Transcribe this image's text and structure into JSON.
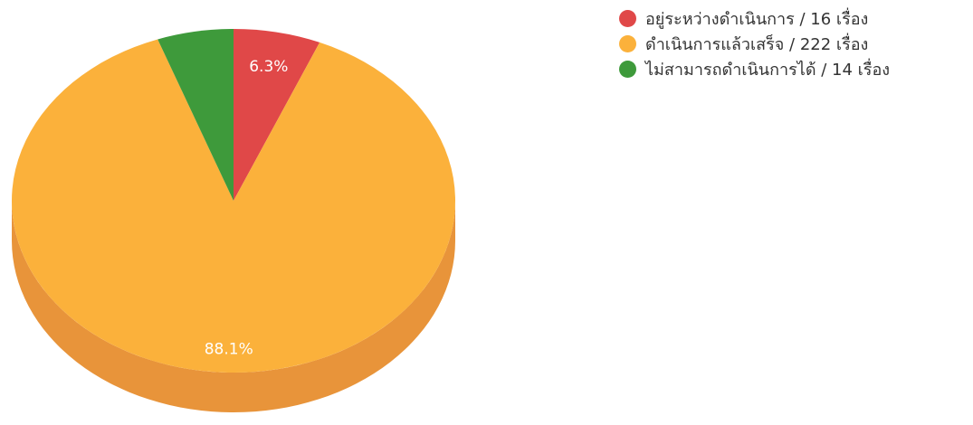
{
  "chart_data": {
    "type": "pie",
    "three_d": true,
    "legend_position": "top-right",
    "series": [
      {
        "name": "อยู่ระหว่างดำเนินการ / 16 เรื่อง",
        "value": 16,
        "color": "#e04848",
        "label": "6.3%"
      },
      {
        "name": "ดำเนินการแล้วเสร็จ / 222 เรื่อง",
        "value": 222,
        "color": "#fbb13b",
        "side_color": "#e8943a",
        "label": "88.1%"
      },
      {
        "name": "ไม่สามารถดำเนินการได้ / 14 เรื่อง",
        "value": 14,
        "color": "#3e9a3b",
        "label": ""
      }
    ]
  }
}
